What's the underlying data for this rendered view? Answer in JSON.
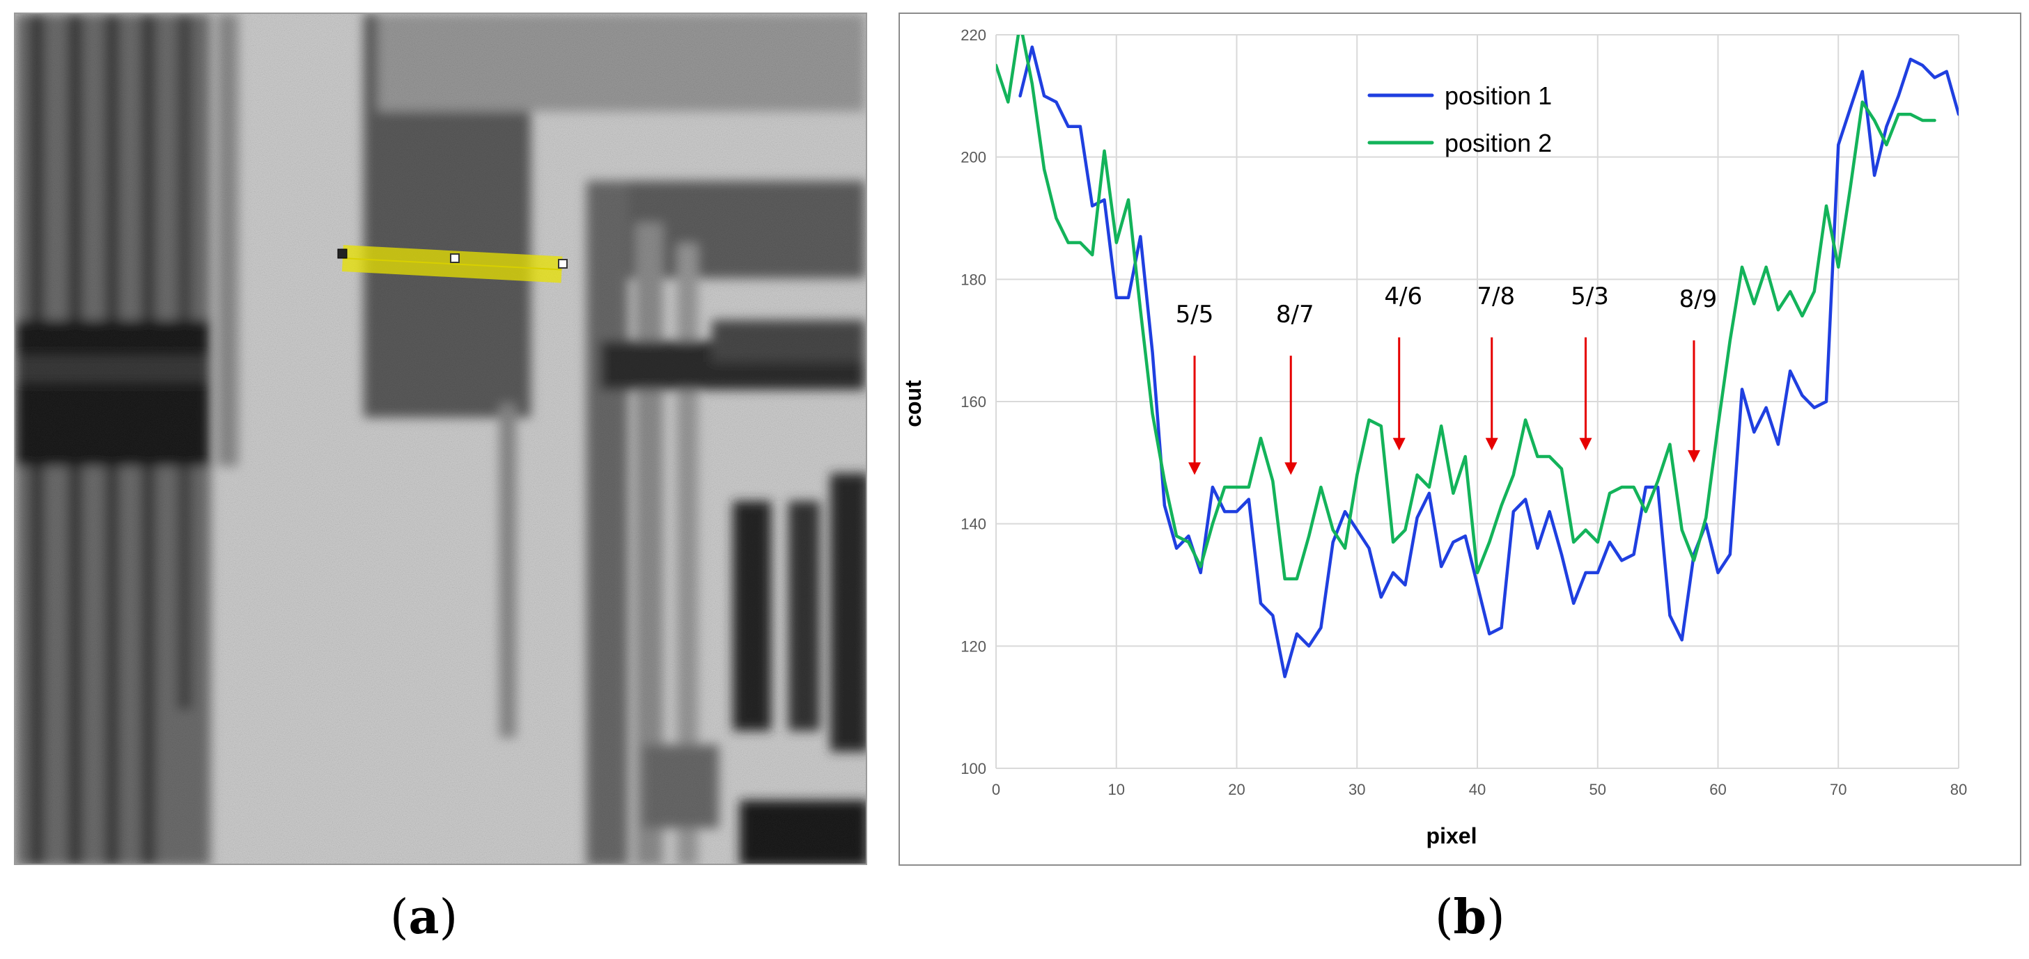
{
  "figure": {
    "caption_a": {
      "open": "(",
      "letter": "a",
      "close": ")"
    },
    "caption_b": {
      "open": "(",
      "letter": "b",
      "close": ")"
    }
  },
  "panel_a": {
    "description": "grayscale radiograph of resolution test pattern with yellow line-profile selection"
  },
  "colors": {
    "series1": "#1f3fe0",
    "series2": "#13b35a",
    "arrow": "#e60000",
    "selection": "#e8e200"
  },
  "chart_data": {
    "type": "line",
    "title": "",
    "xlabel": "pixel",
    "ylabel": "cout",
    "xlim": [
      0,
      80
    ],
    "ylim": [
      100,
      220
    ],
    "xticks": [
      0,
      10,
      20,
      30,
      40,
      50,
      60,
      70,
      80
    ],
    "yticks": [
      100,
      120,
      140,
      160,
      180,
      200,
      220
    ],
    "grid": true,
    "legend_position": "top-center",
    "series": [
      {
        "name": "position 1",
        "color": "#1f3fe0",
        "x": [
          2,
          3,
          4,
          5,
          6,
          7,
          8,
          9,
          10,
          11,
          12,
          13,
          14,
          15,
          16,
          17,
          18,
          19,
          20,
          21,
          22,
          23,
          24,
          25,
          26,
          27,
          28,
          29,
          30,
          31,
          32,
          33,
          34,
          35,
          36,
          37,
          38,
          39,
          40,
          41,
          42,
          43,
          44,
          45,
          46,
          47,
          48,
          49,
          50,
          51,
          52,
          53,
          54,
          55,
          56,
          57,
          58,
          59,
          60,
          61,
          62,
          63,
          64,
          65,
          66,
          67,
          68,
          69,
          70,
          71,
          72,
          73,
          74,
          75,
          76,
          77,
          78,
          79,
          80
        ],
        "values": [
          210,
          218,
          210,
          209,
          205,
          205,
          192,
          193,
          177,
          177,
          187,
          168,
          143,
          136,
          138,
          132,
          146,
          142,
          142,
          144,
          127,
          125,
          115,
          122,
          120,
          123,
          137,
          142,
          139,
          136,
          128,
          132,
          130,
          141,
          145,
          133,
          137,
          138,
          130,
          122,
          123,
          142,
          144,
          136,
          142,
          135,
          127,
          132,
          132,
          137,
          134,
          135,
          146,
          146,
          125,
          121,
          135,
          140,
          132,
          135,
          162,
          155,
          159,
          153,
          165,
          161,
          159,
          160,
          202,
          208,
          214,
          197,
          205,
          210,
          216,
          215,
          213,
          214,
          207
        ]
      },
      {
        "name": "position 2",
        "color": "#13b35a",
        "x": [
          0,
          1,
          2,
          3,
          4,
          5,
          6,
          7,
          8,
          9,
          10,
          11,
          12,
          13,
          14,
          15,
          16,
          17,
          18,
          19,
          20,
          21,
          22,
          23,
          24,
          25,
          26,
          27,
          28,
          29,
          30,
          31,
          32,
          33,
          34,
          35,
          36,
          37,
          38,
          39,
          40,
          41,
          42,
          43,
          44,
          45,
          46,
          47,
          48,
          49,
          50,
          51,
          52,
          53,
          54,
          55,
          56,
          57,
          58,
          59,
          60,
          61,
          62,
          63,
          64,
          65,
          66,
          67,
          68,
          69,
          70,
          71,
          72,
          73,
          74,
          75,
          76,
          77,
          78
        ],
        "values": [
          215,
          209,
          222,
          212,
          198,
          190,
          186,
          186,
          184,
          201,
          186,
          193,
          175,
          158,
          147,
          138,
          137,
          133,
          140,
          146,
          146,
          146,
          154,
          147,
          131,
          131,
          138,
          146,
          139,
          136,
          148,
          157,
          156,
          137,
          139,
          148,
          146,
          156,
          145,
          151,
          132,
          137,
          143,
          148,
          157,
          151,
          151,
          149,
          137,
          139,
          137,
          145,
          146,
          146,
          142,
          147,
          153,
          139,
          134,
          141,
          156,
          170,
          182,
          176,
          182,
          175,
          178,
          174,
          178,
          192,
          182,
          195,
          209,
          206,
          202,
          207,
          207,
          206,
          206
        ]
      }
    ],
    "annotations": [
      {
        "label": "5/5",
        "x": 16.5,
        "arrow_top": 167.5,
        "arrow_bottom": 148
      },
      {
        "label": "8/7",
        "x": 24.5,
        "arrow_top": 167.5,
        "arrow_bottom": 148
      },
      {
        "label": "4/6",
        "x": 33.5,
        "arrow_top": 170.5,
        "arrow_bottom": 152
      },
      {
        "label": "7/8",
        "x": 41.2,
        "arrow_top": 170.5,
        "arrow_bottom": 152
      },
      {
        "label": "5/3",
        "x": 49,
        "arrow_top": 170.5,
        "arrow_bottom": 152
      },
      {
        "label": "8/9",
        "x": 58,
        "arrow_top": 170,
        "arrow_bottom": 150
      }
    ]
  }
}
